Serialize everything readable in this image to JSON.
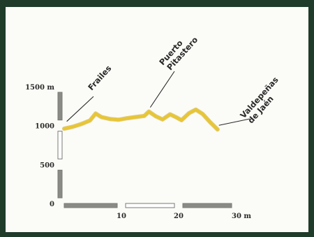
{
  "chart_data": {
    "type": "line",
    "title": "",
    "xlabel": "",
    "ylabel": "",
    "x_unit": "m",
    "y_unit": "m",
    "xlim": [
      0,
      30
    ],
    "ylim": [
      0,
      1500
    ],
    "x_ticks": [
      {
        "value": 10,
        "label": "10"
      },
      {
        "value": 20,
        "label": "20"
      },
      {
        "value": 30,
        "label": "30 m"
      }
    ],
    "y_ticks": [
      {
        "value": 0,
        "label": "0"
      },
      {
        "value": 500,
        "label": "500"
      },
      {
        "value": 1000,
        "label": "1000"
      },
      {
        "value": 1500,
        "label": "1500 m"
      }
    ],
    "series": [
      {
        "color": "#e8c632",
        "x": [
          0,
          1.5,
          3,
          4.5,
          5.5,
          6.5,
          8,
          9.5,
          11,
          12.5,
          14,
          14.8,
          16,
          17.2,
          18.5,
          19.5,
          20.5,
          21.8,
          23,
          24.2,
          25.5,
          26.8
        ],
        "y": [
          960,
          985,
          1020,
          1065,
          1155,
          1110,
          1085,
          1075,
          1095,
          1110,
          1125,
          1180,
          1120,
          1080,
          1145,
          1110,
          1070,
          1160,
          1205,
          1150,
          1045,
          950
        ]
      }
    ],
    "annotations": [
      {
        "id": "frailes",
        "lines": [
          "Frailes"
        ],
        "x": 0.2,
        "y": 1000
      },
      {
        "id": "puerto-pitastero",
        "lines": [
          "Puerto",
          "Pitastero"
        ],
        "x": 14.8,
        "y": 1180
      },
      {
        "id": "valdepenas",
        "lines": [
          "Valdepeñas",
          "de Jaén"
        ],
        "x": 26.8,
        "y": 950
      }
    ]
  }
}
